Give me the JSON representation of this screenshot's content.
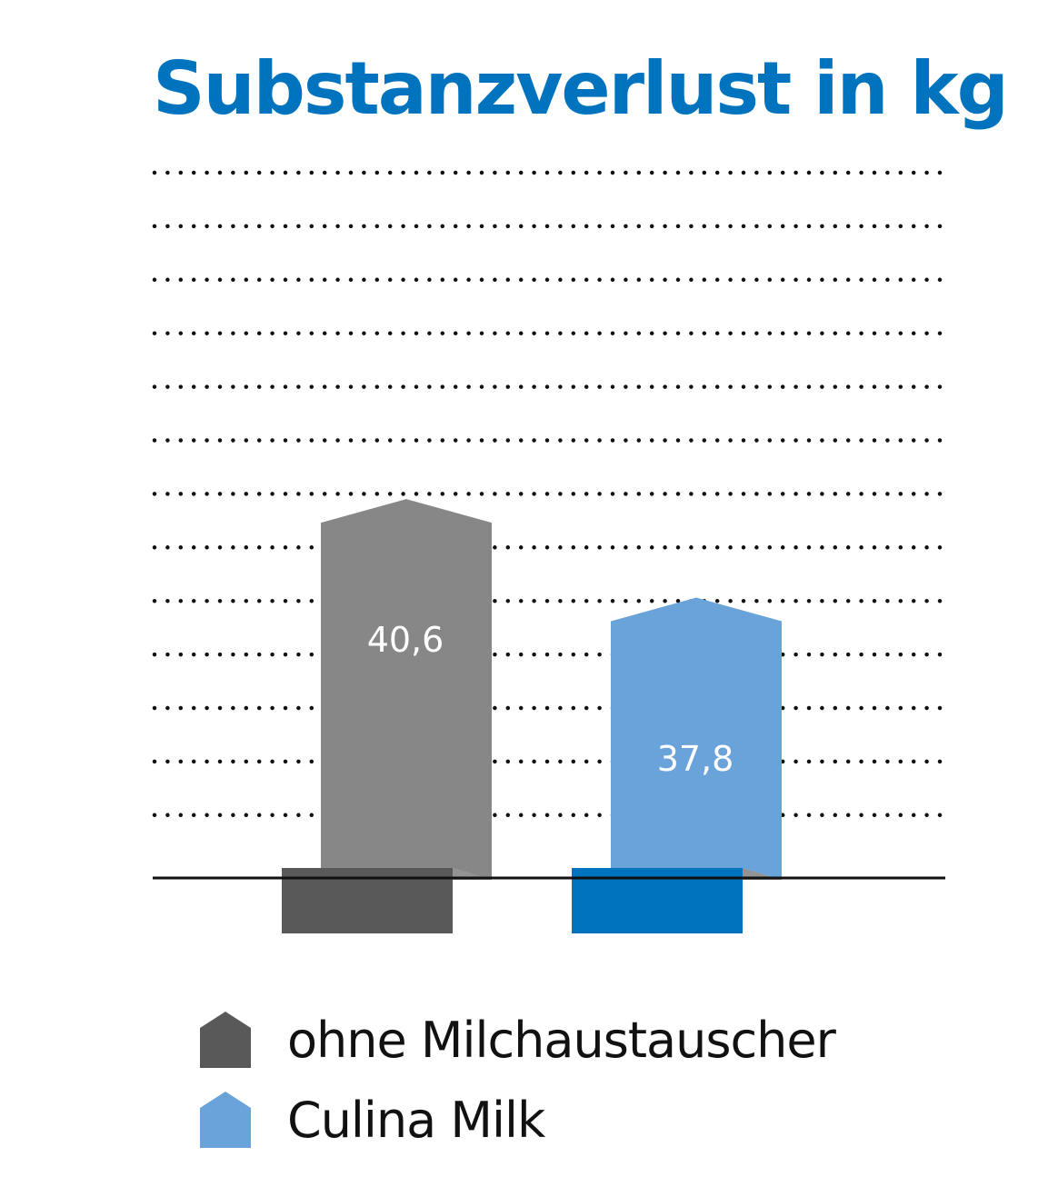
{
  "chart_data": {
    "type": "bar",
    "title": "Substanzverlust in kg",
    "categories": [
      "ohne Milchaustauscher",
      "Culina Milk"
    ],
    "series": [
      {
        "name": "Substanzverlust",
        "values": [
          40.6,
          37.8
        ]
      }
    ],
    "value_labels": [
      "40,6",
      "37,8"
    ],
    "legend": [
      {
        "label": "ohne Milchaustauscher",
        "color": "#595959",
        "shade": "#585858"
      },
      {
        "label": "Culina Milk",
        "color": "#6aa3d9",
        "shade": "#0073bf"
      }
    ],
    "ylim": [
      30.5,
      43
    ],
    "grid": true,
    "legend_position": "bottom"
  },
  "colors": {
    "title": "#0073bf",
    "bar_1": "#878787",
    "bar_1_base": "#595959",
    "bar_2": "#6aa3d9",
    "bar_2_base": "#0073bf"
  }
}
